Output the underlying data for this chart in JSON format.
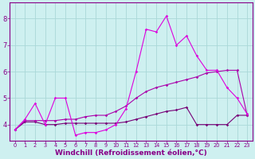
{
  "background_color": "#cef0f0",
  "grid_color": "#aad8d8",
  "line_color_1": "#dd00dd",
  "line_color_2": "#aa00aa",
  "line_color_3": "#770077",
  "xlabel": "Windchill (Refroidissement éolien,°C)",
  "xlabel_fontsize": 6.5,
  "ylim": [
    3.4,
    8.6
  ],
  "xlim": [
    -0.5,
    23.5
  ],
  "series1_x": [
    0,
    1,
    2,
    3,
    4,
    5,
    6,
    7,
    8,
    9,
    10,
    11,
    12,
    13,
    14,
    15,
    16,
    17,
    18,
    19,
    20,
    21,
    22,
    23
  ],
  "series1_y": [
    3.8,
    4.2,
    4.8,
    4.0,
    5.0,
    5.0,
    3.6,
    3.7,
    3.7,
    3.8,
    4.0,
    4.6,
    6.0,
    7.6,
    7.5,
    8.1,
    7.0,
    7.35,
    6.6,
    6.05,
    6.05,
    5.4,
    5.0,
    4.4
  ],
  "series2_x": [
    0,
    1,
    2,
    3,
    4,
    5,
    6,
    7,
    8,
    9,
    10,
    11,
    12,
    13,
    14,
    15,
    16,
    17,
    18,
    19,
    20,
    21,
    22,
    23
  ],
  "series2_y": [
    3.8,
    4.15,
    4.15,
    4.15,
    4.15,
    4.2,
    4.2,
    4.3,
    4.35,
    4.35,
    4.5,
    4.7,
    5.0,
    5.25,
    5.4,
    5.5,
    5.6,
    5.7,
    5.8,
    5.95,
    6.0,
    6.05,
    6.05,
    4.35
  ],
  "series3_x": [
    0,
    1,
    2,
    3,
    4,
    5,
    6,
    7,
    8,
    9,
    10,
    11,
    12,
    13,
    14,
    15,
    16,
    17,
    18,
    19,
    20,
    21,
    22,
    23
  ],
  "series3_y": [
    3.8,
    4.1,
    4.1,
    4.0,
    4.0,
    4.05,
    4.05,
    4.05,
    4.05,
    4.05,
    4.05,
    4.1,
    4.2,
    4.3,
    4.4,
    4.5,
    4.55,
    4.65,
    4.0,
    4.0,
    4.0,
    4.0,
    4.35,
    4.35
  ],
  "yticks": [
    4,
    5,
    6,
    7,
    8
  ],
  "xtick_labels": [
    "0",
    "1",
    "2",
    "3",
    "4",
    "5",
    "6",
    "7",
    "8",
    "9",
    "10",
    "11",
    "12",
    "13",
    "14",
    "15",
    "16",
    "17",
    "18",
    "19",
    "20",
    "21",
    "22",
    "23"
  ]
}
